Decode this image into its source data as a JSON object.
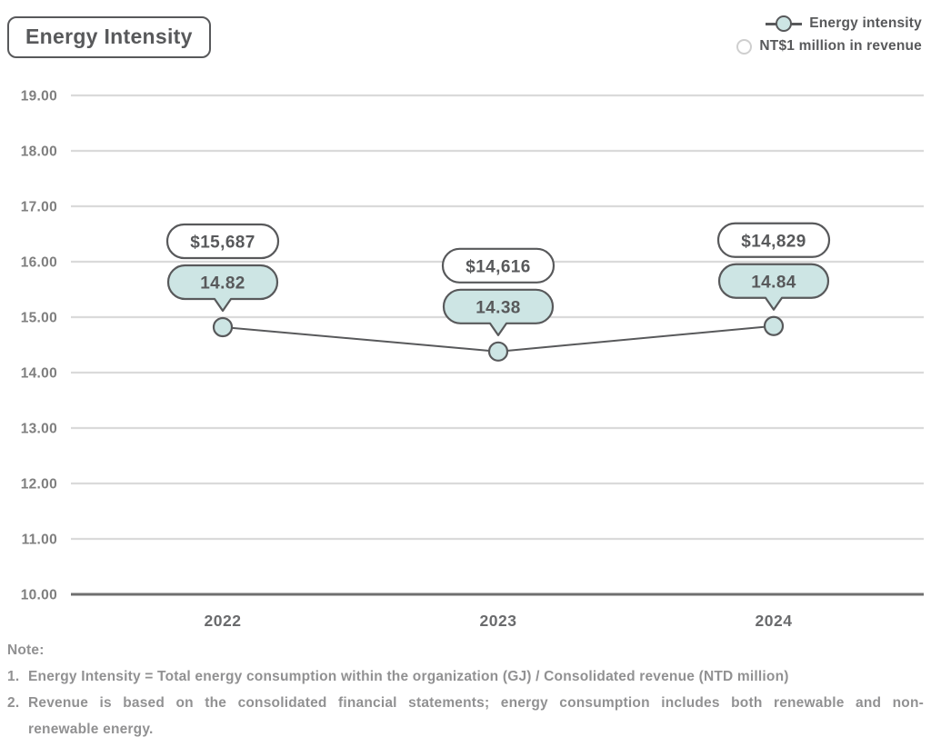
{
  "title": "Energy Intensity",
  "legend": [
    {
      "label": "Energy intensity",
      "marker": "line-circle-teal"
    },
    {
      "label": "NT$1 million in revenue",
      "marker": "circle-white"
    }
  ],
  "colors": {
    "teal_fill": "#cde5e4",
    "dark_gray": "#58595b",
    "grid_line": "#dadada",
    "axis_base_line": "#6f6f6f",
    "y_label_gray": "#7f7f7f",
    "x_label_gray": "#6a6b6d",
    "note_gray": "#919192"
  },
  "chart_data": {
    "type": "line",
    "title": "Energy Intensity",
    "categories": [
      "2022",
      "2023",
      "2024"
    ],
    "series": [
      {
        "name": "Energy intensity",
        "values": [
          14.82,
          14.38,
          14.84
        ]
      }
    ],
    "point_labels": [
      "14.82",
      "14.38",
      "14.84"
    ],
    "revenue_labels": [
      "$15,687",
      "$14,616",
      "$14,829"
    ],
    "ylim": [
      10,
      19
    ],
    "ytick_step": 1,
    "ytick_labels": [
      "10.00",
      "11.00",
      "12.00",
      "13.00",
      "14.00",
      "15.00",
      "16.00",
      "17.00",
      "18.00",
      "19.00"
    ],
    "grid": true,
    "legend_position": "top-right",
    "xlabel": "",
    "ylabel": ""
  },
  "notes": {
    "heading": "Note:",
    "items": [
      {
        "num": "1.",
        "lines": [
          "Energy Intensity = Total energy consumption within the organization (GJ) / Consolidated revenue (NTD million)"
        ]
      },
      {
        "num": "2.",
        "lines": [
          "Revenue is based on the consolidated financial statements; energy consumption includes both renewable and non-",
          "renewable energy."
        ]
      }
    ]
  }
}
